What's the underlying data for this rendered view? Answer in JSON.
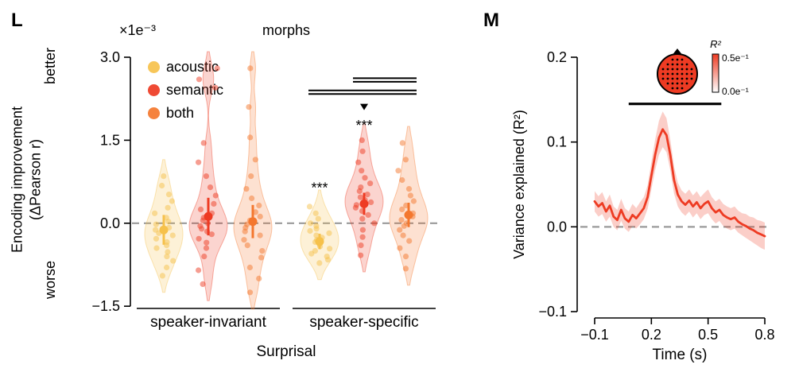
{
  "figure": {
    "background": "#ffffff"
  },
  "chart_data": [
    {
      "type": "violin",
      "panel_letter": "L",
      "title": "morphs",
      "scale_label": "×1e⁻³",
      "ylabel": "Encoding improvement (ΔPearson r)",
      "ylabel_lines": [
        "Encoding improvement",
        "(ΔPearson r)"
      ],
      "better_label": "better",
      "worse_label": "worse",
      "xlabel": "Surprisal",
      "ylim": [
        -1.6,
        3.1
      ],
      "yticks": [
        3.0,
        1.5,
        0.0,
        -1.5
      ],
      "ytick_labels": [
        "3.0",
        "1.5",
        "0.0",
        "−1.5"
      ],
      "zero_line": true,
      "grid": false,
      "legend_position": "upper left",
      "groups": [
        "speaker-invariant",
        "speaker-specific"
      ],
      "series": [
        {
          "name": "acoustic",
          "color": "#F6C14B",
          "groups": [
            {
              "mean": -0.12,
              "err": 0.27,
              "points": [
                -0.95,
                -0.8,
                -0.68,
                -0.6,
                -0.52,
                -0.45,
                -0.4,
                -0.34,
                -0.28,
                -0.22,
                -0.18,
                -0.12,
                -0.08,
                -0.02,
                0.03,
                0.1,
                0.18,
                0.28,
                0.4,
                0.52,
                0.68,
                0.85
              ]
            },
            {
              "mean": -0.33,
              "err": 0.14,
              "sig": "***",
              "sig_y": 0.55,
              "points": [
                -0.72,
                -0.66,
                -0.6,
                -0.55,
                -0.5,
                -0.46,
                -0.42,
                -0.38,
                -0.34,
                -0.3,
                -0.26,
                -0.22,
                -0.18,
                -0.14,
                -0.1,
                -0.05,
                0.0,
                0.08,
                0.18,
                0.3
              ]
            }
          ]
        },
        {
          "name": "semantic",
          "color": "#EE3B23",
          "groups": [
            {
              "mean": 0.12,
              "err": 0.34,
              "points": [
                -1.1,
                -0.85,
                -0.6,
                -0.45,
                -0.35,
                -0.28,
                -0.2,
                -0.15,
                -0.1,
                -0.05,
                0.0,
                0.05,
                0.1,
                0.18,
                0.25,
                0.35,
                0.5,
                0.65,
                0.85,
                1.1,
                1.45,
                2.45,
                2.6,
                2.8
              ]
            },
            {
              "mean": 0.35,
              "err": 0.2,
              "sig": "***",
              "sig_y": 1.68,
              "marker_y": 2.1,
              "points": [
                -0.58,
                -0.4,
                -0.25,
                -0.12,
                0.0,
                0.08,
                0.15,
                0.22,
                0.28,
                0.33,
                0.38,
                0.42,
                0.47,
                0.52,
                0.58,
                0.65,
                0.72,
                0.82,
                0.95,
                1.1,
                1.3,
                1.5
              ]
            }
          ]
        },
        {
          "name": "both",
          "color": "#F4772E",
          "groups": [
            {
              "mean": 0.03,
              "err": 0.3,
              "points": [
                -1.25,
                -1.0,
                -0.8,
                -0.62,
                -0.5,
                -0.4,
                -0.3,
                -0.22,
                -0.15,
                -0.08,
                -0.02,
                0.05,
                0.12,
                0.2,
                0.32,
                0.45,
                0.62,
                0.85,
                1.15,
                1.55,
                2.1,
                2.8
              ]
            },
            {
              "mean": 0.15,
              "err": 0.22,
              "points": [
                -0.82,
                -0.6,
                -0.45,
                -0.32,
                -0.22,
                -0.12,
                -0.05,
                0.0,
                0.06,
                0.12,
                0.18,
                0.25,
                0.32,
                0.4,
                0.5,
                0.62,
                0.78,
                0.95,
                1.15,
                1.45
              ]
            }
          ]
        }
      ],
      "comparison_bars": [
        {
          "group": 1,
          "from_series": 0,
          "to_series": 2,
          "y": 2.4
        },
        {
          "group": 1,
          "from_series": 1,
          "to_series": 2,
          "y": 2.62
        }
      ]
    },
    {
      "type": "line",
      "panel_letter": "M",
      "ylabel": "Variance explained (R²)",
      "xlabel": "Time (s)",
      "xlim": [
        -0.1,
        0.8
      ],
      "ylim": [
        -0.1,
        0.2
      ],
      "xticks": [
        -0.1,
        0.2,
        0.5,
        0.8
      ],
      "xtick_labels": [
        "−0.1",
        "0.2",
        "0.5",
        "0.8"
      ],
      "yticks": [
        0.2,
        0.1,
        0.0,
        -0.1
      ],
      "ytick_labels": [
        "0.2",
        "0.1",
        "0.0",
        "−0.1"
      ],
      "zero_line": true,
      "grid": false,
      "series": [
        {
          "color": "#EE3B23",
          "x": [
            -0.1,
            -0.08,
            -0.06,
            -0.04,
            -0.02,
            0.0,
            0.02,
            0.04,
            0.06,
            0.08,
            0.1,
            0.12,
            0.14,
            0.16,
            0.18,
            0.2,
            0.22,
            0.24,
            0.26,
            0.28,
            0.3,
            0.32,
            0.34,
            0.36,
            0.38,
            0.4,
            0.42,
            0.44,
            0.46,
            0.48,
            0.5,
            0.52,
            0.54,
            0.56,
            0.58,
            0.6,
            0.62,
            0.64,
            0.66,
            0.68,
            0.7,
            0.72,
            0.74,
            0.76,
            0.78,
            0.8
          ],
          "y": [
            0.03,
            0.024,
            0.028,
            0.018,
            0.025,
            0.012,
            0.008,
            0.02,
            0.01,
            0.006,
            0.014,
            0.01,
            0.016,
            0.022,
            0.035,
            0.06,
            0.085,
            0.105,
            0.115,
            0.108,
            0.085,
            0.055,
            0.038,
            0.03,
            0.026,
            0.031,
            0.024,
            0.029,
            0.022,
            0.027,
            0.03,
            0.022,
            0.017,
            0.02,
            0.014,
            0.011,
            0.009,
            0.011,
            0.006,
            0.003,
            0.001,
            -0.002,
            -0.004,
            -0.007,
            -0.009,
            -0.011
          ],
          "band": [
            0.012,
            0.012,
            0.013,
            0.012,
            0.013,
            0.012,
            0.012,
            0.013,
            0.012,
            0.012,
            0.013,
            0.012,
            0.013,
            0.013,
            0.014,
            0.016,
            0.018,
            0.02,
            0.021,
            0.02,
            0.018,
            0.016,
            0.014,
            0.013,
            0.013,
            0.013,
            0.013,
            0.013,
            0.013,
            0.013,
            0.014,
            0.013,
            0.013,
            0.013,
            0.013,
            0.013,
            0.013,
            0.013,
            0.013,
            0.013,
            0.014,
            0.014,
            0.015,
            0.015,
            0.016,
            0.016
          ]
        }
      ],
      "significance_bar": {
        "t_start": 0.08,
        "t_end": 0.57,
        "y": 0.145
      },
      "inset": {
        "type": "topomap",
        "colorbar_title": "R²",
        "colorbar_top": "0.5e⁻¹",
        "colorbar_bottom": "0.0e⁻¹"
      }
    }
  ]
}
